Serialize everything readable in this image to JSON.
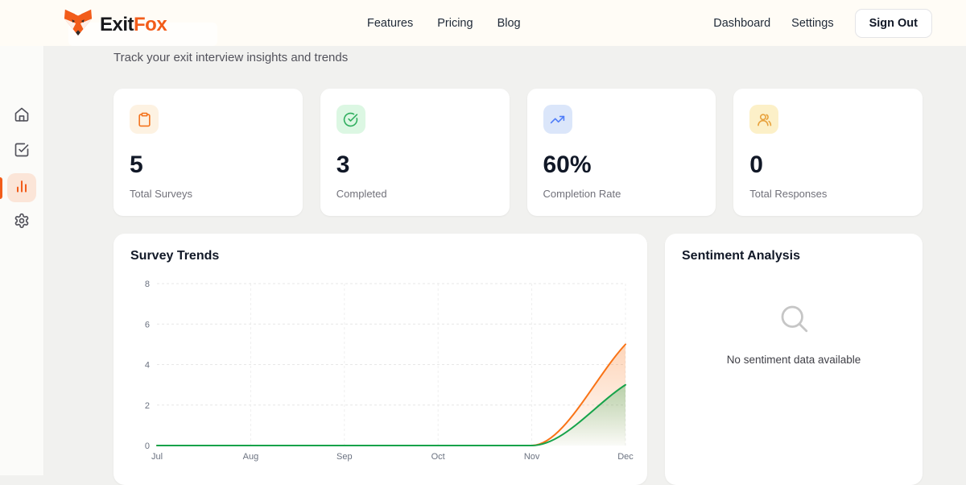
{
  "brand": {
    "name_primary": "Exit",
    "name_secondary": "Fox"
  },
  "navbar": {
    "links": [
      {
        "label": "Features"
      },
      {
        "label": "Pricing"
      },
      {
        "label": "Blog"
      }
    ],
    "right_links": [
      {
        "label": "Dashboard"
      },
      {
        "label": "Settings"
      }
    ],
    "sign_out_label": "Sign Out"
  },
  "sidebar": {
    "items": [
      {
        "id": "home",
        "icon": "home-icon",
        "active": false
      },
      {
        "id": "surveys",
        "icon": "square-check-icon",
        "active": false
      },
      {
        "id": "analytics",
        "icon": "bar-chart-icon",
        "active": true
      },
      {
        "id": "settings",
        "icon": "gear-icon",
        "active": false
      }
    ],
    "accent_color": "#f25c1a"
  },
  "page": {
    "subtitle": "Track your exit interview insights and trends"
  },
  "stats": [
    {
      "value": "5",
      "label": "Total Surveys",
      "icon": "clipboard-icon",
      "icon_color": "#f4731c",
      "icon_bg": "#fdf2e2"
    },
    {
      "value": "3",
      "label": "Completed",
      "icon": "check-circle-icon",
      "icon_color": "#2fae5e",
      "icon_bg": "#dcf7e3"
    },
    {
      "value": "60%",
      "label": "Completion Rate",
      "icon": "trending-up-icon",
      "icon_color": "#4f7df9",
      "icon_bg": "#dbe6fa"
    },
    {
      "value": "0",
      "label": "Total Responses",
      "icon": "users-icon",
      "icon_color": "#e8a23d",
      "icon_bg": "#fcf0c8"
    }
  ],
  "trends_panel": {
    "title": "Survey Trends"
  },
  "sentiment_panel": {
    "title": "Sentiment Analysis",
    "empty_message": "No sentiment data available",
    "icon": "magnifier-icon"
  },
  "chart_data": {
    "type": "area",
    "title": "Survey Trends",
    "categories": [
      "Jul",
      "Aug",
      "Sep",
      "Oct",
      "Nov",
      "Dec"
    ],
    "series": [
      {
        "name": "Total Surveys",
        "color": "#f97316",
        "values": [
          0,
          0,
          0,
          0,
          0,
          5
        ]
      },
      {
        "name": "Completed",
        "color": "#16a34a",
        "values": [
          0,
          0,
          0,
          0,
          0,
          3
        ]
      }
    ],
    "xlabel": "",
    "ylabel": "",
    "ylim": [
      0,
      8
    ],
    "yticks": [
      0,
      2,
      4,
      6,
      8
    ],
    "grid": true,
    "legend": false,
    "curve": "monotone"
  }
}
